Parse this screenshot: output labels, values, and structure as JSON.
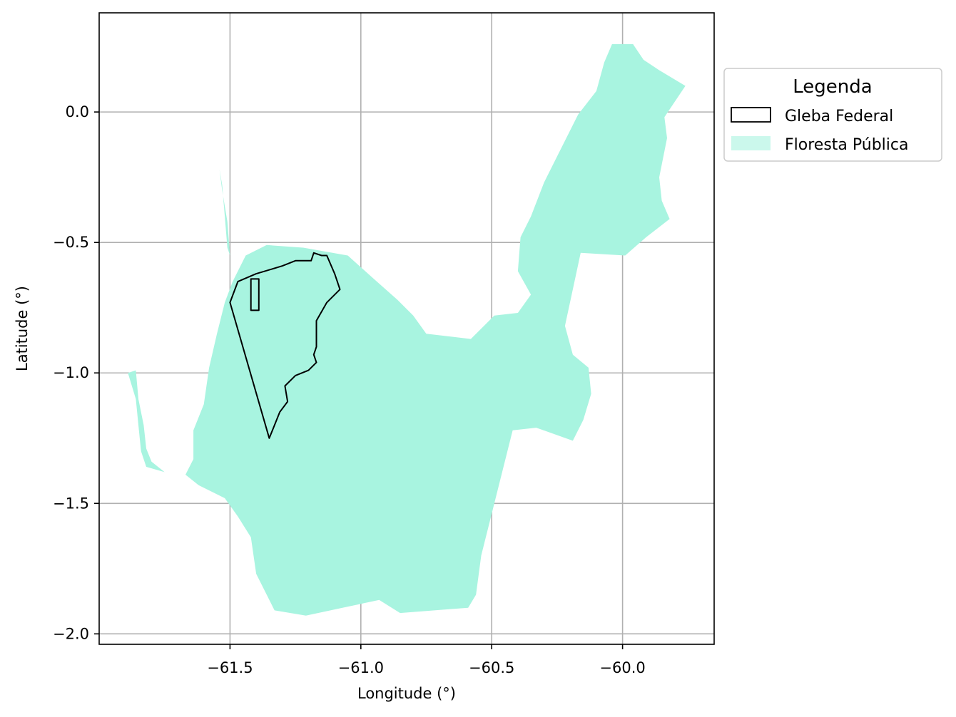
{
  "chart_data": {
    "type": "map",
    "xlabel": "Longitude (°)",
    "ylabel": "Latitude (°)",
    "xlim": [
      -62.0,
      -59.65
    ],
    "ylim": [
      -2.04,
      0.38
    ],
    "xticks": [
      -61.5,
      -61.0,
      -60.5,
      -60.0
    ],
    "xtick_labels": [
      "−61.5",
      "−61.0",
      "−60.5",
      "−60.0"
    ],
    "yticks": [
      0.0,
      -0.5,
      -1.0,
      -1.5,
      -2.0
    ],
    "ytick_labels": [
      "0.0",
      "−0.5",
      "−1.0",
      "−1.5",
      "−2.0"
    ],
    "grid": true,
    "legend": {
      "title": "Legenda",
      "placement": "outside-right-top",
      "entries": [
        {
          "label": "Gleba Federal",
          "style": "outline",
          "color": "#000000"
        },
        {
          "label": "Floresta Pública",
          "style": "fill",
          "color": "#a8f4e0"
        }
      ]
    },
    "layers": [
      {
        "name": "Floresta Pública",
        "fill": "#a8f4e0",
        "polygons": [
          [
            [
              -61.44,
              -0.55
            ],
            [
              -61.36,
              -0.51
            ],
            [
              -61.22,
              -0.52
            ],
            [
              -61.05,
              -0.55
            ],
            [
              -60.95,
              -0.64
            ],
            [
              -60.86,
              -0.72
            ],
            [
              -60.8,
              -0.78
            ],
            [
              -60.75,
              -0.85
            ],
            [
              -60.58,
              -0.87
            ],
            [
              -60.49,
              -0.78
            ],
            [
              -60.4,
              -0.77
            ],
            [
              -60.35,
              -0.7
            ],
            [
              -60.4,
              -0.61
            ],
            [
              -60.39,
              -0.48
            ],
            [
              -60.35,
              -0.4
            ],
            [
              -60.3,
              -0.27
            ],
            [
              -60.25,
              -0.17
            ],
            [
              -60.17,
              -0.01
            ],
            [
              -60.1,
              0.08
            ],
            [
              -60.07,
              0.19
            ],
            [
              -60.04,
              0.26
            ],
            [
              -59.96,
              0.26
            ],
            [
              -59.92,
              0.2
            ],
            [
              -59.86,
              0.16
            ],
            [
              -59.76,
              0.1
            ],
            [
              -59.84,
              -0.02
            ],
            [
              -59.83,
              -0.1
            ],
            [
              -59.86,
              -0.25
            ],
            [
              -59.85,
              -0.34
            ],
            [
              -59.82,
              -0.41
            ],
            [
              -59.91,
              -0.48
            ],
            [
              -59.99,
              -0.55
            ],
            [
              -60.16,
              -0.54
            ],
            [
              -60.22,
              -0.82
            ],
            [
              -60.19,
              -0.93
            ],
            [
              -60.13,
              -0.98
            ],
            [
              -60.12,
              -1.08
            ],
            [
              -60.15,
              -1.18
            ],
            [
              -60.19,
              -1.26
            ],
            [
              -60.33,
              -1.21
            ],
            [
              -60.42,
              -1.22
            ],
            [
              -60.51,
              -1.58
            ],
            [
              -60.54,
              -1.7
            ],
            [
              -60.56,
              -1.85
            ],
            [
              -60.59,
              -1.9
            ],
            [
              -60.85,
              -1.92
            ],
            [
              -60.93,
              -1.87
            ],
            [
              -61.07,
              -1.9
            ],
            [
              -61.21,
              -1.93
            ],
            [
              -61.33,
              -1.91
            ],
            [
              -61.4,
              -1.77
            ],
            [
              -61.42,
              -1.63
            ],
            [
              -61.47,
              -1.55
            ],
            [
              -61.52,
              -1.48
            ],
            [
              -61.62,
              -1.43
            ],
            [
              -61.67,
              -1.39
            ],
            [
              -61.64,
              -1.33
            ],
            [
              -61.64,
              -1.22
            ],
            [
              -61.6,
              -1.12
            ],
            [
              -61.58,
              -0.98
            ],
            [
              -61.55,
              -0.85
            ],
            [
              -61.52,
              -0.73
            ],
            [
              -61.49,
              -0.65
            ]
          ],
          [
            [
              -61.89,
              -1.0
            ],
            [
              -61.86,
              -0.99
            ],
            [
              -61.85,
              -1.1
            ],
            [
              -61.83,
              -1.2
            ],
            [
              -61.82,
              -1.29
            ],
            [
              -61.8,
              -1.34
            ],
            [
              -61.75,
              -1.38
            ],
            [
              -61.82,
              -1.36
            ],
            [
              -61.84,
              -1.3
            ],
            [
              -61.85,
              -1.2
            ],
            [
              -61.86,
              -1.1
            ]
          ],
          [
            [
              -61.54,
              -0.22
            ],
            [
              -61.53,
              -0.3
            ],
            [
              -61.51,
              -0.42
            ],
            [
              -61.5,
              -0.55
            ],
            [
              -61.49,
              -0.58
            ],
            [
              -61.51,
              -0.52
            ],
            [
              -61.52,
              -0.4
            ],
            [
              -61.53,
              -0.28
            ]
          ]
        ]
      },
      {
        "name": "Gleba Federal",
        "stroke": "#000000",
        "polygons": [
          [
            [
              -61.5,
              -0.73
            ],
            [
              -61.47,
              -0.65
            ],
            [
              -61.4,
              -0.62
            ],
            [
              -61.3,
              -0.59
            ],
            [
              -61.25,
              -0.57
            ],
            [
              -61.19,
              -0.57
            ],
            [
              -61.18,
              -0.54
            ],
            [
              -61.15,
              -0.55
            ],
            [
              -61.13,
              -0.55
            ],
            [
              -61.1,
              -0.62
            ],
            [
              -61.08,
              -0.68
            ],
            [
              -61.13,
              -0.73
            ],
            [
              -61.17,
              -0.8
            ],
            [
              -61.17,
              -0.9
            ],
            [
              -61.18,
              -0.93
            ],
            [
              -61.17,
              -0.96
            ],
            [
              -61.2,
              -0.99
            ],
            [
              -61.25,
              -1.01
            ],
            [
              -61.29,
              -1.05
            ],
            [
              -61.28,
              -1.11
            ],
            [
              -61.31,
              -1.15
            ],
            [
              -61.33,
              -1.2
            ],
            [
              -61.35,
              -1.25
            ]
          ],
          [
            [
              -61.42,
              -0.64
            ],
            [
              -61.39,
              -0.64
            ],
            [
              -61.39,
              -0.76
            ],
            [
              -61.42,
              -0.76
            ]
          ]
        ]
      }
    ]
  }
}
